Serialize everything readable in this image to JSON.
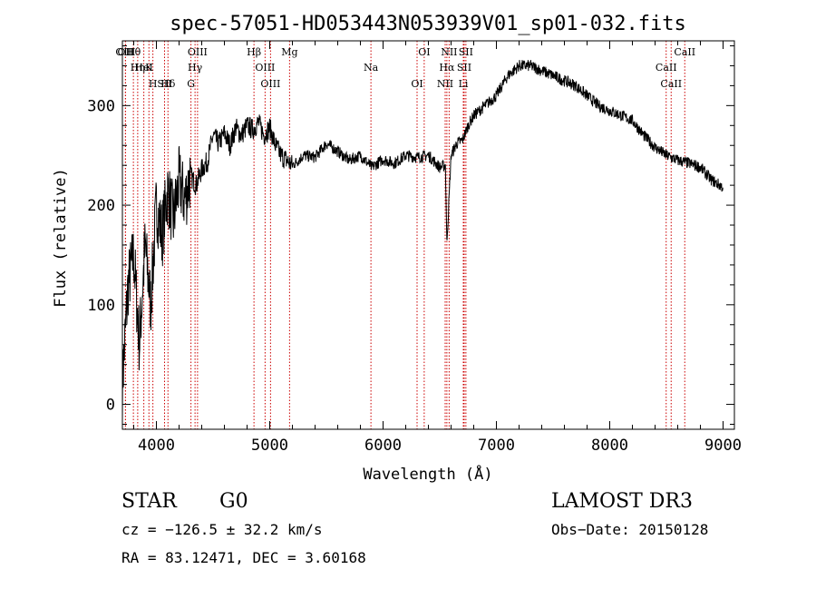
{
  "chart_data": {
    "type": "line",
    "title": "spec-57051-HD053443N053939V01_sp01-032.fits",
    "xlabel": "Wavelength (Å)",
    "ylabel": "Flux (relative)",
    "xlim": [
      3700,
      9100
    ],
    "ylim": [
      -25,
      365
    ],
    "xticks": [
      4000,
      5000,
      6000,
      7000,
      8000,
      9000
    ],
    "yticks": [
      0,
      100,
      200,
      300
    ],
    "xtick_labels": [
      "4000",
      "5000",
      "6000",
      "7000",
      "8000",
      "9000"
    ],
    "ytick_labels": [
      "0",
      "100",
      "200",
      "300"
    ],
    "grid": false,
    "series": [
      {
        "color": "#000000",
        "x": [
          3700,
          3750,
          3800,
          3850,
          3900,
          3950,
          4000,
          4050,
          4100,
          4150,
          4200,
          4250,
          4300,
          4350,
          4400,
          4450,
          4500,
          4550,
          4600,
          4650,
          4700,
          4750,
          4800,
          4850,
          4900,
          4950,
          5000,
          5050,
          5100,
          5150,
          5200,
          5300,
          5400,
          5500,
          5600,
          5700,
          5800,
          5900,
          6000,
          6100,
          6200,
          6300,
          6400,
          6500,
          6550,
          6563,
          6600,
          6650,
          6700,
          6750,
          6800,
          6900,
          7000,
          7100,
          7200,
          7300,
          7400,
          7500,
          7600,
          7700,
          7800,
          7900,
          8000,
          8100,
          8200,
          8300,
          8400,
          8500,
          8600,
          8700,
          8800,
          8900,
          9000
        ],
        "y": [
          20,
          120,
          150,
          60,
          160,
          100,
          200,
          170,
          215,
          185,
          225,
          205,
          230,
          220,
          236,
          244,
          270,
          262,
          272,
          260,
          278,
          270,
          280,
          276,
          283,
          270,
          278,
          260,
          250,
          245,
          240,
          250,
          248,
          262,
          254,
          245,
          250,
          238,
          246,
          242,
          250,
          248,
          250,
          238,
          240,
          160,
          250,
          262,
          265,
          280,
          290,
          300,
          310,
          330,
          340,
          340,
          335,
          330,
          325,
          320,
          310,
          300,
          295,
          290,
          285,
          270,
          258,
          250,
          245,
          242,
          238,
          225,
          218
        ]
      }
    ],
    "annotations": {
      "lines": [
        {
          "label": "Hθ",
          "wavelength": 3797
        },
        {
          "label": "K",
          "wavelength": 3934
        },
        {
          "label": "Hδ",
          "wavelength": 4102
        },
        {
          "label": "OII",
          "wavelength": 3727
        },
        {
          "label": "HeI",
          "wavelength": 3889
        },
        {
          "label": "SII",
          "wavelength": 4072
        },
        {
          "label": "OIII",
          "wavelength": 3727
        },
        {
          "label": "Hη",
          "wavelength": 3835
        },
        {
          "label": "H",
          "wavelength": 3969
        },
        {
          "label": "OIII",
          "wavelength": 4363
        },
        {
          "label": "Hγ",
          "wavelength": 4341
        },
        {
          "label": "G",
          "wavelength": 4305
        },
        {
          "label": "Hβ",
          "wavelength": 4861
        },
        {
          "label": "OIII",
          "wavelength": 4959
        },
        {
          "label": "OIII",
          "wavelength": 5007
        },
        {
          "label": "Mg",
          "wavelength": 5175
        },
        {
          "label": "Na",
          "wavelength": 5893
        },
        {
          "label": "OI",
          "wavelength": 6300
        },
        {
          "label": "OI",
          "wavelength": 6363
        },
        {
          "label": "Hα",
          "wavelength": 6563
        },
        {
          "label": "NII",
          "wavelength": 6548
        },
        {
          "label": "NII",
          "wavelength": 6583
        },
        {
          "label": "SII",
          "wavelength": 6716
        },
        {
          "label": "Li",
          "wavelength": 6708
        },
        {
          "label": "SII",
          "wavelength": 6731
        },
        {
          "label": "CaII",
          "wavelength": 8498
        },
        {
          "label": "CaII",
          "wavelength": 8542
        },
        {
          "label": "CaII",
          "wavelength": 8662
        }
      ],
      "line_color": "#cc0000"
    }
  },
  "info": {
    "object_class": "STAR",
    "subclass": "G0",
    "survey": "LAMOST DR3",
    "cz": "cz = −126.5 ± 32.2 km/s",
    "obs_date": "Obs−Date: 20150128",
    "coords": "RA =  83.12471, DEC =   3.60168"
  }
}
